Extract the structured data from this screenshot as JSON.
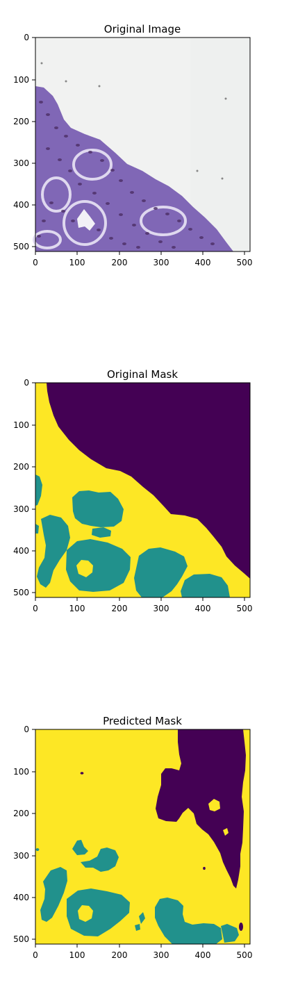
{
  "figure": {
    "panels": [
      {
        "title": "Original Image",
        "x_ticks": [
          "0",
          "100",
          "200",
          "300",
          "400",
          "500"
        ],
        "y_ticks": [
          "0",
          "100",
          "200",
          "300",
          "400",
          "500"
        ]
      },
      {
        "title": "Original Mask",
        "x_ticks": [
          "0",
          "100",
          "200",
          "300",
          "400",
          "500"
        ],
        "y_ticks": [
          "0",
          "100",
          "200",
          "300",
          "400",
          "500"
        ]
      },
      {
        "title": "Predicted Mask",
        "x_ticks": [
          "0",
          "100",
          "200",
          "300",
          "400",
          "500"
        ],
        "y_ticks": [
          "0",
          "100",
          "200",
          "300",
          "400",
          "500"
        ]
      }
    ]
  },
  "colors": {
    "mask_background": "#440154",
    "mask_class_1": "#fde725",
    "mask_class_2": "#21918c",
    "tissue": "#8067b6",
    "tissue_dark": "#4d2f67",
    "glass": "#f1f2f1"
  }
}
